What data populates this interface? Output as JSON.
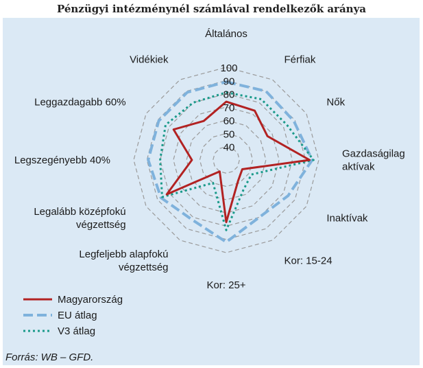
{
  "chart_data": {
    "type": "radar",
    "title": "Pénzügyi intézménynél számlával rendelkezők aránya",
    "source": "Forrás: WB – GFD.",
    "axes": [
      {
        "label": [
          "Általános"
        ]
      },
      {
        "label": [
          "Férfiak"
        ]
      },
      {
        "label": [
          "Nők"
        ]
      },
      {
        "label": [
          "Gazdaságilag",
          "aktívak"
        ]
      },
      {
        "label": [
          "Inaktívak"
        ]
      },
      {
        "label": [
          "Kor: 15-24"
        ]
      },
      {
        "label": [
          "Kor: 25+"
        ]
      },
      {
        "label": [
          "Legfeljebb alapfokú",
          "végzettség"
        ]
      },
      {
        "label": [
          "Legalább középfokú",
          "végzettség"
        ]
      },
      {
        "label": [
          "Legszegényebb 40%"
        ]
      },
      {
        "label": [
          "Leggazdagabb 60%"
        ]
      },
      {
        "label": [
          "Vidékiek"
        ]
      }
    ],
    "ticks": [
      "40",
      "50",
      "60",
      "70",
      "80",
      "90",
      "100"
    ],
    "range": [
      30,
      100
    ],
    "series": [
      {
        "name": "Magyarország",
        "color": "#b22222",
        "style": "solid",
        "values": [
          74,
          73,
          66,
          93,
          44,
          48,
          77,
          40,
          82,
          56,
          76,
          64
        ]
      },
      {
        "name": "EU átlag",
        "color": "#7fb2dc",
        "style": "dashed",
        "values": [
          89,
          90,
          89,
          95,
          84,
          80,
          92,
          82,
          87,
          89,
          89,
          89
        ]
      },
      {
        "name": "V3 átlag",
        "color": "#1a9a8a",
        "style": "dotted",
        "values": [
          81,
          83,
          83,
          96,
          52,
          56,
          83,
          50,
          86,
          80,
          83,
          80
        ]
      }
    ]
  }
}
